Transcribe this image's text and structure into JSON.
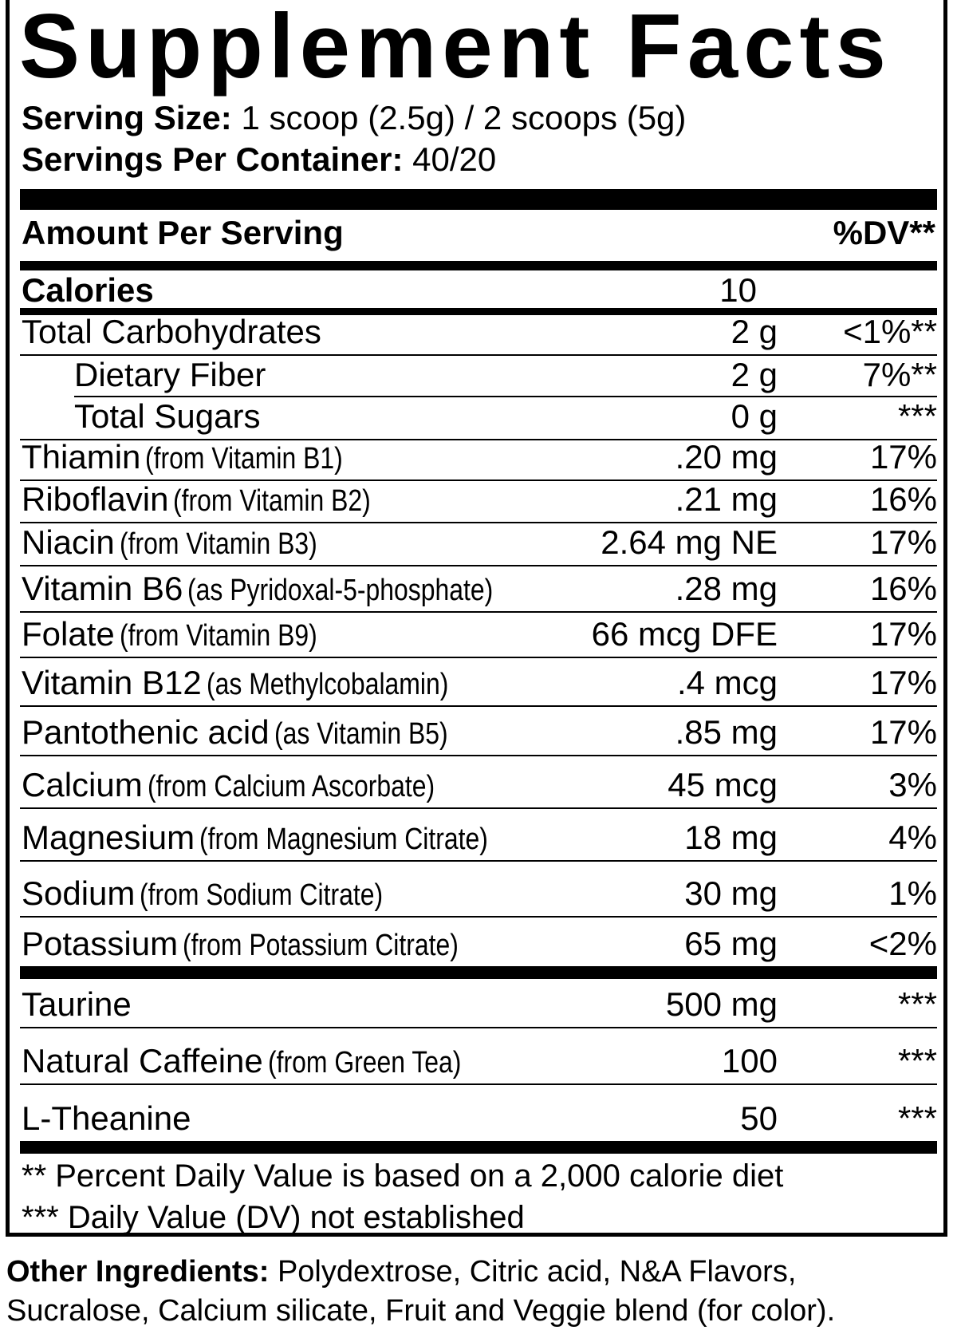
{
  "title": "Supplement Facts",
  "serving_size": {
    "label": "Serving Size:",
    "value": "1 scoop (2.5g) / 2 scoops (5g)"
  },
  "servings_per_container": {
    "label": "Servings Per Container:",
    "value": "40/20"
  },
  "header": {
    "amount_label": "Amount Per Serving",
    "dv_label": "%DV**"
  },
  "calories": {
    "label": "Calories",
    "value": "10"
  },
  "nutrients": [
    {
      "name": "Total Carbohydrates",
      "source": "",
      "amount": "2 g",
      "dv": "<1%**"
    },
    {
      "name": "Dietary Fiber",
      "source": "",
      "amount": "2 g",
      "dv": "7%**"
    },
    {
      "name": "Total Sugars",
      "source": "",
      "amount": "0 g",
      "dv": "***"
    },
    {
      "name": "Thiamin",
      "source": "(from Vitamin B1)",
      "amount": ".20 mg",
      "dv": "17%"
    },
    {
      "name": "Riboflavin",
      "source": "(from Vitamin B2)",
      "amount": ".21 mg",
      "dv": "16%"
    },
    {
      "name": "Niacin",
      "source": "(from Vitamin B3)",
      "amount": "2.64 mg NE",
      "dv": "17%"
    },
    {
      "name": "Vitamin B6",
      "source": "(as Pyridoxal-5-phosphate)",
      "amount": ".28 mg",
      "dv": "16%"
    },
    {
      "name": "Folate",
      "source": "(from Vitamin B9)",
      "amount": "66 mcg DFE",
      "dv": "17%"
    },
    {
      "name": "Vitamin B12",
      "source": "(as Methylcobalamin)",
      "amount": ".4 mcg",
      "dv": "17%"
    },
    {
      "name": "Pantothenic acid",
      "source": "(as Vitamin B5)",
      "amount": ".85 mg",
      "dv": "17%"
    },
    {
      "name": "Calcium",
      "source": "(from Calcium Ascorbate)",
      "amount": "45 mcg",
      "dv": "3%"
    },
    {
      "name": "Magnesium",
      "source": "(from Magnesium Citrate)",
      "amount": "18 mg",
      "dv": "4%"
    },
    {
      "name": "Sodium",
      "source": "(from Sodium Citrate)",
      "amount": "30 mg",
      "dv": "1%"
    },
    {
      "name": "Potassium",
      "source": "(from Potassium Citrate)",
      "amount": "65 mg",
      "dv": "<2%"
    },
    {
      "name": "Taurine",
      "source": "",
      "amount": "500 mg",
      "dv": "***"
    },
    {
      "name": "Natural Caffeine",
      "source": "(from Green Tea)",
      "amount": "100",
      "dv": "***"
    },
    {
      "name": "L-Theanine",
      "source": "",
      "amount": "50",
      "dv": "***"
    }
  ],
  "footnotes": [
    "** Percent Daily Value is based on a 2,000 calorie diet",
    "*** Daily Value (DV) not established"
  ],
  "other_ingredients": {
    "label": "Other Ingredients:",
    "line1": "Polydextrose, Citric acid, N&A Flavors,",
    "line2": "Sucralose, Calcium silicate, Fruit and Veggie blend (for color)."
  }
}
